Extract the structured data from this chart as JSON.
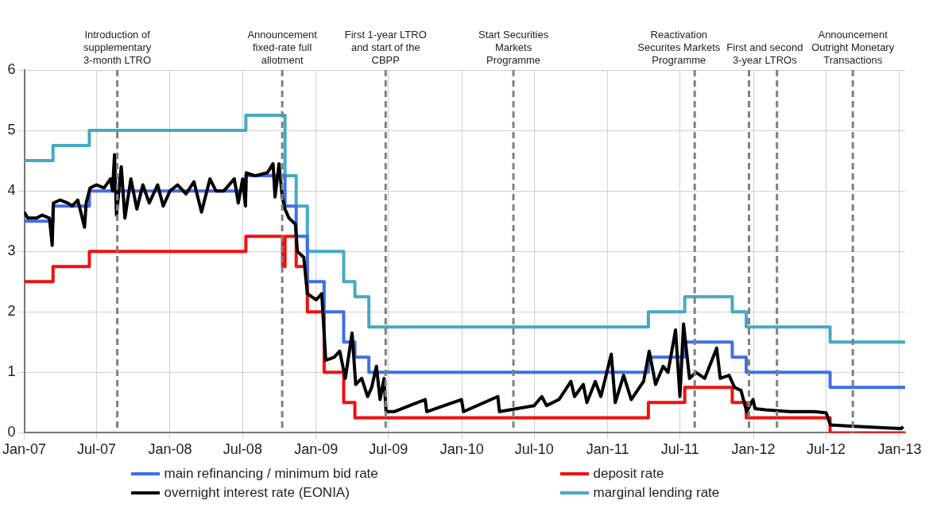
{
  "chart_data": {
    "type": "step",
    "xlim": [
      "2007-01-01",
      "2013-01-15"
    ],
    "xticks": [
      {
        "value": "2007-01-01",
        "label": "Jan-07"
      },
      {
        "value": "2007-07-01",
        "label": "Jul-07"
      },
      {
        "value": "2008-01-01",
        "label": "Jan-08"
      },
      {
        "value": "2008-07-01",
        "label": "Jul-08"
      },
      {
        "value": "2009-01-01",
        "label": "Jan-09"
      },
      {
        "value": "2009-07-01",
        "label": "Jul-09"
      },
      {
        "value": "2010-01-01",
        "label": "Jan-10"
      },
      {
        "value": "2010-07-01",
        "label": "Jul-10"
      },
      {
        "value": "2011-01-01",
        "label": "Jan-11"
      },
      {
        "value": "2011-07-01",
        "label": "Jul-11"
      },
      {
        "value": "2012-01-01",
        "label": "Jan-12"
      },
      {
        "value": "2012-07-01",
        "label": "Jul-12"
      },
      {
        "value": "2013-01-01",
        "label": "Jan-13"
      }
    ],
    "ylim": [
      0,
      6
    ],
    "yticks": [
      0,
      1,
      2,
      3,
      4,
      5,
      6
    ],
    "grid": true,
    "legend": "bottom",
    "line_style": "solid",
    "marker": "none",
    "series": [
      {
        "name": "main refinancing / minimum bid rate",
        "color": "#3f6fe8",
        "x": [
          "2007-01-01",
          "2007-03-14",
          "2007-06-13",
          "2008-07-09",
          "2008-10-15",
          "2008-11-12",
          "2008-12-10",
          "2009-01-21",
          "2009-03-11",
          "2009-04-08",
          "2009-05-13",
          "2011-04-13",
          "2011-07-13",
          "2011-11-09",
          "2011-12-14",
          "2012-07-11",
          "2013-01-15"
        ],
        "values": [
          3.5,
          3.75,
          4,
          4.25,
          3.75,
          3.25,
          2.5,
          2,
          1.5,
          1.25,
          1,
          1.25,
          1.5,
          1.25,
          1,
          0.75,
          0.75
        ]
      },
      {
        "name": "deposit rate",
        "color": "#f01010",
        "x": [
          "2007-01-01",
          "2007-03-14",
          "2007-06-13",
          "2008-07-09",
          "2008-10-09",
          "2008-10-15",
          "2008-11-12",
          "2008-12-10",
          "2009-01-21",
          "2009-03-11",
          "2009-04-08",
          "2011-04-13",
          "2011-07-13",
          "2011-11-09",
          "2011-12-14",
          "2012-07-11",
          "2013-01-15"
        ],
        "values": [
          2.5,
          2.75,
          3,
          3.25,
          2.75,
          3.25,
          2.75,
          2,
          1,
          0.5,
          0.25,
          0.5,
          0.75,
          0.5,
          0.25,
          0,
          0
        ]
      },
      {
        "name": "overnight interest rate (EONIA)",
        "color": "#000000",
        "type": "line",
        "x": [
          "2007-01-01",
          "2007-01-10",
          "2007-02-01",
          "2007-02-15",
          "2007-03-05",
          "2007-03-12",
          "2007-03-15",
          "2007-04-01",
          "2007-04-20",
          "2007-05-01",
          "2007-05-15",
          "2007-06-01",
          "2007-06-05",
          "2007-06-15",
          "2007-07-01",
          "2007-07-20",
          "2007-08-05",
          "2007-08-10",
          "2007-08-15",
          "2007-08-20",
          "2007-09-01",
          "2007-09-10",
          "2007-09-25",
          "2007-10-10",
          "2007-10-25",
          "2007-11-10",
          "2007-12-01",
          "2007-12-15",
          "2008-01-01",
          "2008-01-20",
          "2008-02-10",
          "2008-03-01",
          "2008-03-20",
          "2008-04-10",
          "2008-04-25",
          "2008-05-15",
          "2008-06-10",
          "2008-06-20",
          "2008-07-01",
          "2008-07-08",
          "2008-07-10",
          "2008-08-01",
          "2008-09-01",
          "2008-09-15",
          "2008-09-20",
          "2008-09-30",
          "2008-10-08",
          "2008-10-15",
          "2008-10-25",
          "2008-11-10",
          "2008-11-15",
          "2008-12-01",
          "2008-12-10",
          "2009-01-01",
          "2009-01-15",
          "2009-01-25",
          "2009-02-15",
          "2009-03-01",
          "2009-03-15",
          "2009-04-01",
          "2009-04-10",
          "2009-04-25",
          "2009-05-10",
          "2009-05-20",
          "2009-06-01",
          "2009-06-10",
          "2009-06-20",
          "2009-06-25",
          "2009-07-15",
          "2009-10-01",
          "2009-10-05",
          "2009-12-31",
          "2010-01-05",
          "2010-04-01",
          "2010-04-05",
          "2010-07-01",
          "2010-07-20",
          "2010-08-01",
          "2010-09-01",
          "2010-10-01",
          "2010-10-10",
          "2010-11-01",
          "2010-11-10",
          "2010-12-01",
          "2010-12-15",
          "2011-01-10",
          "2011-01-20",
          "2011-02-10",
          "2011-03-01",
          "2011-04-01",
          "2011-04-15",
          "2011-05-01",
          "2011-05-20",
          "2011-06-01",
          "2011-06-20",
          "2011-07-01",
          "2011-07-10",
          "2011-07-25",
          "2011-08-10",
          "2011-09-01",
          "2011-10-01",
          "2011-10-10",
          "2011-11-01",
          "2011-11-15",
          "2011-12-01",
          "2011-12-15",
          "2011-12-31",
          "2012-01-05",
          "2012-02-01",
          "2012-04-01",
          "2012-06-01",
          "2012-07-01",
          "2012-07-12",
          "2012-09-01",
          "2012-12-01",
          "2013-01-05",
          "2013-01-10"
        ],
        "values": [
          3.65,
          3.55,
          3.55,
          3.6,
          3.55,
          3.1,
          3.8,
          3.85,
          3.8,
          3.75,
          3.85,
          3.4,
          3.8,
          4.05,
          4.1,
          4.05,
          4.2,
          4,
          4.6,
          3.6,
          4.4,
          3.55,
          4.2,
          3.7,
          4.1,
          3.8,
          4.1,
          3.75,
          4,
          4.1,
          3.95,
          4.15,
          3.65,
          4.2,
          4,
          4,
          4.2,
          3.8,
          4.2,
          3.75,
          4.3,
          4.25,
          4.3,
          4.45,
          3.9,
          4.45,
          3.9,
          3.7,
          3.55,
          3.45,
          3,
          2.9,
          2.3,
          2.2,
          2.3,
          1.2,
          1.25,
          1.35,
          0.9,
          1.65,
          0.8,
          0.9,
          0.6,
          0.75,
          1.1,
          0.55,
          0.9,
          0.35,
          0.35,
          0.55,
          0.35,
          0.55,
          0.35,
          0.6,
          0.35,
          0.45,
          0.6,
          0.45,
          0.55,
          0.85,
          0.6,
          0.8,
          0.5,
          0.85,
          0.6,
          1.3,
          0.5,
          0.95,
          0.55,
          0.85,
          1.35,
          0.8,
          1.1,
          1,
          1.7,
          0.6,
          1.8,
          0.9,
          1,
          0.9,
          1.4,
          0.9,
          0.95,
          0.75,
          0.7,
          0.35,
          0.55,
          0.4,
          0.38,
          0.35,
          0.35,
          0.33,
          0.13,
          0.11,
          0.08,
          0.07,
          0.1
        ]
      },
      {
        "name": "marginal lending rate",
        "color": "#46a9c3",
        "x": [
          "2007-01-01",
          "2007-03-14",
          "2007-06-13",
          "2008-07-09",
          "2008-10-15",
          "2008-11-12",
          "2008-12-10",
          "2009-01-21",
          "2009-03-11",
          "2009-04-08",
          "2009-05-13",
          "2011-04-13",
          "2011-07-13",
          "2011-11-09",
          "2011-12-14",
          "2012-07-11",
          "2013-01-15"
        ],
        "values": [
          4.5,
          4.75,
          5,
          5.25,
          4.25,
          3.75,
          3,
          3,
          2.5,
          2.25,
          1.75,
          2,
          2.25,
          2,
          1.75,
          1.5,
          1.5
        ]
      }
    ],
    "ref_lines": [
      {
        "axis": "x",
        "value": "2007-08-22",
        "label": "Introduction of supplementary 3-month LTRO",
        "color": "#808080",
        "line_style": "dashed"
      },
      {
        "axis": "x",
        "value": "2008-10-08",
        "label": "Announcement fixed-rate full allotment",
        "color": "#808080",
        "line_style": "dashed"
      },
      {
        "axis": "x",
        "value": "2009-06-24",
        "label": "First 1-year LTRO and start of the CBPP",
        "color": "#808080",
        "line_style": "dashed"
      },
      {
        "axis": "x",
        "value": "2010-05-10",
        "label": "Start Securities Markets Programme",
        "color": "#808080",
        "line_style": "dashed"
      },
      {
        "axis": "x",
        "value": "2011-08-07",
        "label": "Reactivation Securites Markets Programme",
        "color": "#808080",
        "line_style": "dashed"
      },
      {
        "axis": "x",
        "value": "2011-12-21",
        "label": "First and second 3-year LTROs",
        "color": "#808080",
        "line_style": "dashed"
      },
      {
        "axis": "x",
        "value": "2012-02-29",
        "label": null,
        "color": "#808080",
        "line_style": "dashed"
      },
      {
        "axis": "x",
        "value": "2012-09-06",
        "label": "Announcement Outright Monetary Transactions",
        "color": "#808080",
        "line_style": "dashed"
      }
    ]
  }
}
